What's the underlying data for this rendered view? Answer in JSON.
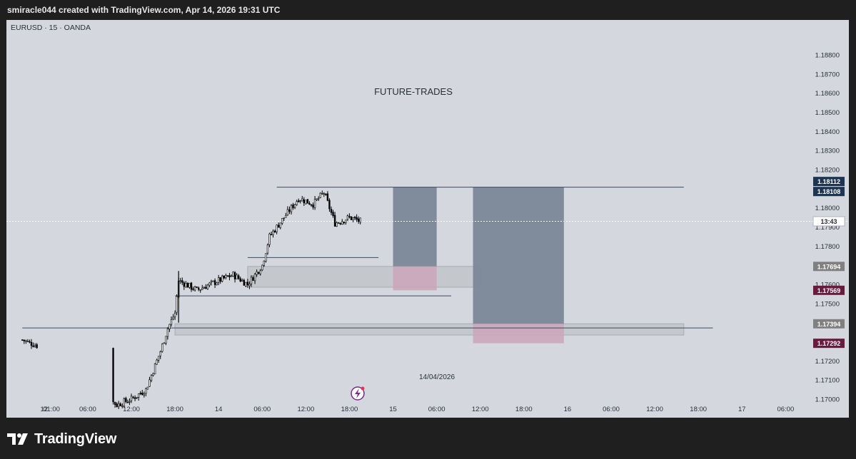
{
  "header": {
    "attribution": "smiracle044 created with TradingView.com, Apr 14, 2026 19:31 UTC"
  },
  "brand": {
    "name": "TradingView",
    "logo_icon": "tradingview-logo-icon"
  },
  "colors": {
    "background": "#d4d8de",
    "candle": "#000000",
    "zone_fill": "#5c6b7e",
    "zone_dark": "#7c8898",
    "pink_zone": "#cba4b8",
    "level_line": "#3a4a60",
    "badge_navy": "#1d3452",
    "badge_grey": "#808080",
    "badge_maroon": "#6a1a3f"
  },
  "chart_data": {
    "type": "candlestick",
    "symbol_label": "EURUSD · 15 · OANDA",
    "annotation_text": "FUTURE-TRADES",
    "date_annotation": "14/04/2026",
    "y_ticks": [
      "1.18800",
      "1.18700",
      "1.18600",
      "1.18500",
      "1.18400",
      "1.18300",
      "1.18200",
      "1.18000",
      "1.17900",
      "1.17800",
      "1.17600",
      "1.17500",
      "1.17400",
      "1.17200",
      "1.17100",
      "1.17000"
    ],
    "ylim": [
      1.17,
      1.1888
    ],
    "x_ticks": [
      "12",
      "01:00",
      "06:00",
      "12:00",
      "18:00",
      "14",
      "06:00",
      "12:00",
      "18:00",
      "15",
      "06:00",
      "12:00",
      "18:00",
      "16",
      "06:00",
      "12:00",
      "18:00",
      "17",
      "06:00"
    ],
    "price_badges": [
      {
        "value": "1.18112",
        "price": 1.18112,
        "color": "#1d3452"
      },
      {
        "value": "1.18108",
        "price": 1.18108,
        "color": "#1d3452"
      },
      {
        "value": "13:43",
        "price": 1.1793,
        "color": "#ffffff"
      },
      {
        "value": "1.17694",
        "price": 1.17694,
        "color": "#808080"
      },
      {
        "value": "1.17569",
        "price": 1.17569,
        "color": "#6a1a3f"
      },
      {
        "value": "1.17394",
        "price": 1.17394,
        "color": "#808080"
      },
      {
        "value": "1.17292",
        "price": 1.17292,
        "color": "#6a1a3f"
      }
    ],
    "current_price_line": 1.1793,
    "horizontal_levels": [
      {
        "price": 1.18108,
        "from": "Apr 14 08:00",
        "to": "Apr 16 16:00"
      },
      {
        "price": 1.17372,
        "from": "Apr 12 21:00",
        "to": "Apr 16 20:00"
      },
      {
        "price": 1.1754,
        "from": "Apr 13 18:00",
        "to": "Apr 15 08:00"
      },
      {
        "price": 1.1774,
        "from": "Apr 14 04:00",
        "to": "Apr 14 22:00"
      }
    ],
    "gray_zones": [
      {
        "price_top": 1.17694,
        "price_bottom": 1.17585,
        "from": "Apr 14 04:00",
        "to": "Apr 15 12:00"
      },
      {
        "price_top": 1.17394,
        "price_bottom": 1.17335,
        "from": "Apr 13 18:00",
        "to": "Apr 16 16:00"
      }
    ],
    "position_boxes": [
      {
        "from": "Apr 15 00:00",
        "to": "Apr 15 06:00",
        "target": 1.18108,
        "entry": 1.17694,
        "stop": 1.17569
      },
      {
        "from": "Apr 15 11:00",
        "to": "Apr 15 23:30",
        "target": 1.18108,
        "entry": 1.17394,
        "stop": 1.17292
      }
    ],
    "candles_approx": [
      {
        "t": "Apr 12 21:00",
        "price": 1.1731
      },
      {
        "t": "Apr 12 23:00",
        "price": 1.1728
      },
      {
        "t": "Apr 13 10:00",
        "price": 1.1697
      },
      {
        "t": "Apr 13 12:00",
        "price": 1.17
      },
      {
        "t": "Apr 13 14:00",
        "price": 1.1705
      },
      {
        "t": "Apr 13 16:00",
        "price": 1.1725
      },
      {
        "t": "Apr 13 17:00",
        "price": 1.1737
      },
      {
        "t": "Apr 13 18:00",
        "price": 1.1745
      },
      {
        "t": "Apr 13 18:30",
        "price": 1.1762
      },
      {
        "t": "Apr 13 21:00",
        "price": 1.1757
      },
      {
        "t": "Apr 14 00:00",
        "price": 1.1762
      },
      {
        "t": "Apr 14 02:00",
        "price": 1.1765
      },
      {
        "t": "Apr 14 04:00",
        "price": 1.176
      },
      {
        "t": "Apr 14 05:00",
        "price": 1.1765
      },
      {
        "t": "Apr 14 06:00",
        "price": 1.177
      },
      {
        "t": "Apr 14 07:00",
        "price": 1.1785
      },
      {
        "t": "Apr 14 09:00",
        "price": 1.1795
      },
      {
        "t": "Apr 14 11:00",
        "price": 1.1805
      },
      {
        "t": "Apr 14 13:00",
        "price": 1.1802
      },
      {
        "t": "Apr 14 14:30",
        "price": 1.1808
      },
      {
        "t": "Apr 14 16:00",
        "price": 1.1792
      },
      {
        "t": "Apr 14 18:00",
        "price": 1.1795
      },
      {
        "t": "Apr 14 19:30",
        "price": 1.1793
      }
    ]
  }
}
